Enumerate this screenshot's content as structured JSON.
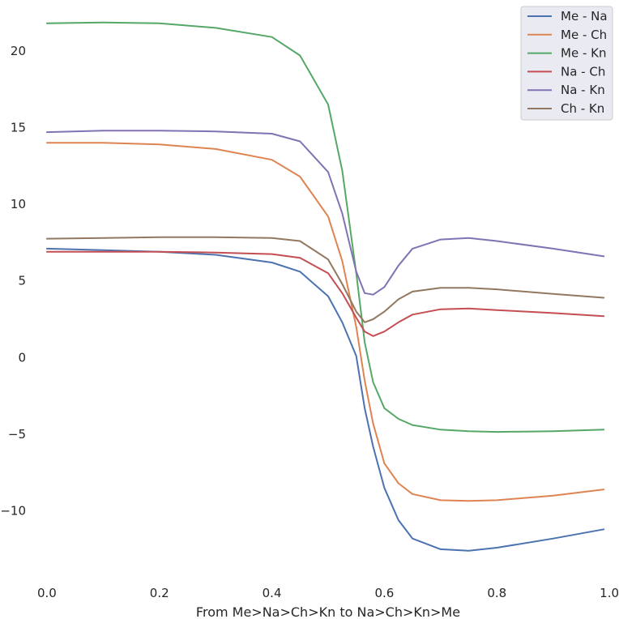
{
  "chart_data": {
    "type": "line",
    "title": "",
    "xlabel": "From Me>Na>Ch>Kn to Na>Ch>Kn>Me",
    "ylabel": "",
    "xlim": [
      -0.02,
      1.02
    ],
    "ylim": [
      -14.3,
      23.0
    ],
    "grid": false,
    "legend_position": "top-right",
    "x_ticks": [
      0.0,
      0.2,
      0.4,
      0.6,
      0.8,
      1.0
    ],
    "x_tick_labels": [
      "0.0",
      "0.2",
      "0.4",
      "0.6",
      "0.8",
      "1.0"
    ],
    "y_ticks": [
      -10,
      -5,
      0,
      5,
      10,
      15,
      20
    ],
    "y_tick_labels": [
      "−10",
      "−5",
      "0",
      "5",
      "10",
      "15",
      "20"
    ],
    "x": [
      0.0,
      0.1,
      0.2,
      0.3,
      0.4,
      0.45,
      0.5,
      0.525,
      0.55,
      0.565,
      0.58,
      0.6,
      0.625,
      0.65,
      0.7,
      0.75,
      0.8,
      0.9,
      0.99
    ],
    "series": [
      {
        "name": "Me - Na",
        "color": "#4c72b0",
        "values": [
          7.1,
          7.0,
          6.9,
          6.7,
          6.2,
          5.6,
          4.0,
          2.3,
          0.1,
          -3.3,
          -5.8,
          -8.5,
          -10.6,
          -11.8,
          -12.5,
          -12.6,
          -12.4,
          -11.8,
          -11.2
        ]
      },
      {
        "name": "Me - Ch",
        "color": "#dd8452",
        "values": [
          14.0,
          14.0,
          13.9,
          13.6,
          12.9,
          11.8,
          9.2,
          6.3,
          2.0,
          -1.5,
          -4.3,
          -6.9,
          -8.2,
          -8.9,
          -9.3,
          -9.35,
          -9.3,
          -9.0,
          -8.6
        ]
      },
      {
        "name": "Me - Kn",
        "color": "#55a868",
        "values": [
          21.8,
          21.85,
          21.8,
          21.5,
          20.9,
          19.7,
          16.5,
          12.2,
          5.5,
          1.0,
          -1.6,
          -3.3,
          -4.0,
          -4.4,
          -4.7,
          -4.8,
          -4.85,
          -4.8,
          -4.7
        ]
      },
      {
        "name": "Na - Ch",
        "color": "#c44e52",
        "values": [
          6.9,
          6.9,
          6.9,
          6.85,
          6.75,
          6.5,
          5.5,
          4.2,
          2.6,
          1.7,
          1.4,
          1.7,
          2.3,
          2.8,
          3.15,
          3.2,
          3.1,
          2.9,
          2.7
        ]
      },
      {
        "name": "Na - Kn",
        "color": "#8172b3",
        "values": [
          14.7,
          14.8,
          14.8,
          14.75,
          14.6,
          14.1,
          12.1,
          9.4,
          5.6,
          4.2,
          4.1,
          4.6,
          6.0,
          7.1,
          7.7,
          7.8,
          7.6,
          7.1,
          6.6
        ]
      },
      {
        "name": "Ch - Kn",
        "color": "#937860",
        "values": [
          7.75,
          7.8,
          7.85,
          7.85,
          7.8,
          7.6,
          6.4,
          4.8,
          3.0,
          2.3,
          2.5,
          3.0,
          3.8,
          4.3,
          4.55,
          4.55,
          4.45,
          4.15,
          3.9
        ]
      }
    ]
  }
}
